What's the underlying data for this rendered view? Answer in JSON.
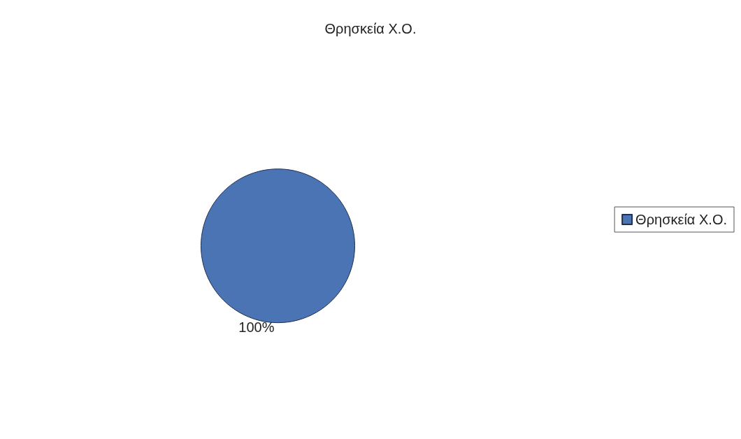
{
  "chart_data": {
    "type": "pie",
    "title": "Θρησκεία Χ.Ο.",
    "categories": [
      "Θρησκεία Χ.Ο."
    ],
    "values": [
      100
    ],
    "colors": [
      "#4a74b4"
    ],
    "value_labels": [
      "100%"
    ],
    "legend": "right"
  }
}
